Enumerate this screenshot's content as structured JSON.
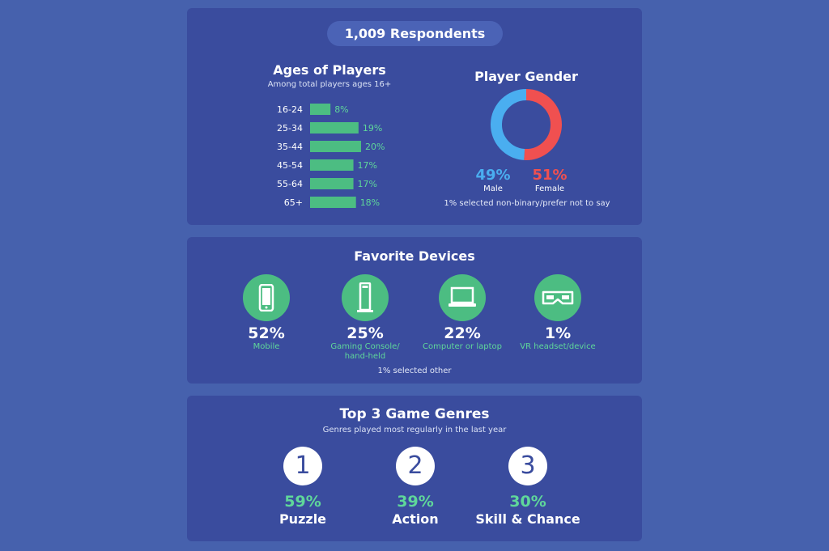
{
  "respondents": "1,009 Respondents",
  "colors": {
    "bar": "#4cbd82",
    "male": "#4aaef0",
    "female": "#f05050",
    "pct_green": "#5fd79a"
  },
  "chart_data": [
    {
      "type": "bar",
      "orientation": "horizontal",
      "title": "Ages of Players",
      "subtitle": "Among total players ages 16+",
      "categories": [
        "16-24",
        "25-34",
        "35-44",
        "45-54",
        "55-64",
        "65+"
      ],
      "values": [
        8,
        19,
        20,
        17,
        17,
        18
      ],
      "value_labels": [
        "8%",
        "19%",
        "20%",
        "17%",
        "17%",
        "18%"
      ],
      "xlim": [
        0,
        20
      ]
    },
    {
      "type": "pie",
      "donut": true,
      "title": "Player Gender",
      "categories": [
        "Male",
        "Female"
      ],
      "values": [
        49,
        51
      ],
      "value_labels": [
        "49%",
        "51%"
      ],
      "note": "1% selected non-binary/prefer not to say"
    }
  ],
  "devices": {
    "title": "Favorite Devices",
    "items": [
      {
        "icon": "mobile-phone-icon",
        "pct": "52%",
        "label": "Mobile"
      },
      {
        "icon": "gaming-console-icon",
        "pct": "25%",
        "label": "Gaming Console/ hand-held"
      },
      {
        "icon": "laptop-icon",
        "pct": "22%",
        "label": "Computer or laptop"
      },
      {
        "icon": "vr-headset-icon",
        "pct": "1%",
        "label": "VR headset/device"
      }
    ],
    "note": "1% selected other"
  },
  "genres": {
    "title": "Top 3 Game Genres",
    "subtitle": "Genres played most regularly in the last year",
    "items": [
      {
        "rank": "1",
        "pct": "59%",
        "label": "Puzzle"
      },
      {
        "rank": "2",
        "pct": "39%",
        "label": "Action"
      },
      {
        "rank": "3",
        "pct": "30%",
        "label": "Skill & Chance"
      }
    ]
  }
}
